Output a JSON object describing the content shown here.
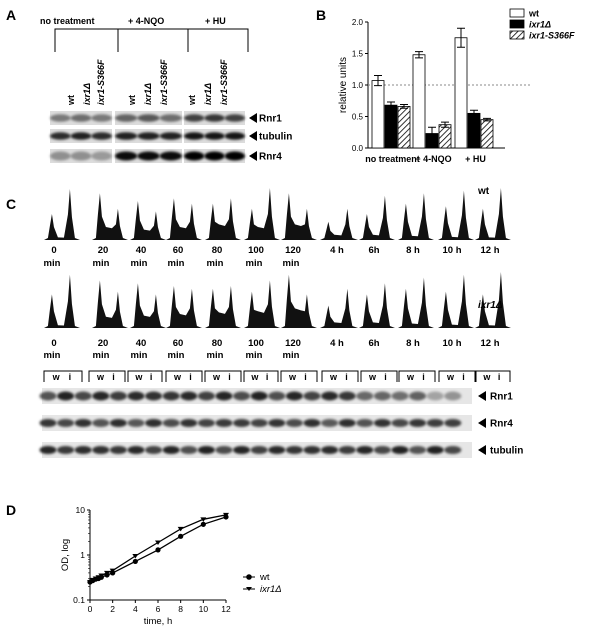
{
  "panel_letters": {
    "a": "A",
    "b": "B",
    "c": "C",
    "d": "D"
  },
  "panelA": {
    "groups": [
      "no treatment",
      "+ 4-NQO",
      "+ HU"
    ],
    "lanes": [
      "wt",
      "ixr1Δ",
      "ixr1-S366F",
      "wt",
      "ixr1Δ",
      "ixr1-S366F",
      "wt",
      "ixr1Δ",
      "ixr1-S366F"
    ],
    "bands": [
      "Rnr1",
      "tubulin",
      "Rnr4"
    ]
  },
  "panelB": {
    "legend": [
      {
        "label": "wt",
        "fill": "#ffffff"
      },
      {
        "label": "ixr1Δ",
        "fill": "#000000"
      },
      {
        "label": "ixr1-S366F",
        "fill": "hatch"
      }
    ]
  },
  "panelC": {
    "wt_label": "wt",
    "mut_label": "ixr1Δ",
    "times_top": [
      [
        "0",
        "min"
      ],
      [
        "20",
        "min"
      ],
      [
        "40",
        "min"
      ],
      [
        "60",
        "min"
      ],
      [
        "80",
        "min"
      ],
      [
        "100",
        "min"
      ],
      [
        "120",
        "min"
      ],
      [
        "4 h"
      ],
      [
        "6h"
      ],
      [
        "8 h"
      ],
      [
        "10 h"
      ],
      [
        "12 h"
      ]
    ],
    "times_blot": [
      [
        "0",
        "min"
      ],
      [
        "20",
        "min"
      ],
      [
        "40",
        "min"
      ],
      [
        "60",
        "min"
      ],
      [
        "80",
        "min"
      ],
      [
        "100",
        "min"
      ],
      [
        "120",
        "min"
      ],
      [
        "4 h"
      ],
      [
        "6h"
      ],
      [
        "8 h"
      ],
      [
        "10 h"
      ],
      [
        "12 h"
      ]
    ],
    "lane_letters": [
      "w",
      "i"
    ],
    "bands": [
      "Rnr1",
      "Rnr4",
      "tubulin"
    ]
  },
  "panelD": {
    "legend": [
      "wt",
      "ixr1Δ"
    ]
  },
  "chart_data": [
    {
      "type": "bar",
      "ylabel": "relative units",
      "categories": [
        "no treatment",
        "+ 4-NQO",
        "+ HU"
      ],
      "ylim": [
        0,
        2.0
      ],
      "yticks": [
        "0.0",
        "0.5",
        "1.0",
        "1.5",
        "2.0"
      ],
      "reference_line": 1.0,
      "series": [
        {
          "name": "wt",
          "values": [
            1.07,
            1.48,
            1.75
          ],
          "errors": [
            0.08,
            0.05,
            0.15
          ]
        },
        {
          "name": "ixr1Δ",
          "values": [
            0.68,
            0.23,
            0.55
          ],
          "errors": [
            0.05,
            0.1,
            0.05
          ]
        },
        {
          "name": "ixr1-S366F",
          "values": [
            0.66,
            0.37,
            0.45
          ],
          "errors": [
            0.03,
            0.04,
            0.02
          ]
        }
      ]
    },
    {
      "type": "line",
      "xlabel": "time, h",
      "ylabel": "OD, log",
      "xlim": [
        0,
        12
      ],
      "xticks": [
        "0",
        "2",
        "4",
        "6",
        "8",
        "10",
        "12"
      ],
      "ylim_log": [
        0.1,
        10
      ],
      "yticks": [
        "0.1",
        "1",
        "10"
      ],
      "series": [
        {
          "name": "wt",
          "x": [
            0,
            0.25,
            0.5,
            0.75,
            1,
            1.5,
            2,
            4,
            6,
            8,
            10,
            12
          ],
          "y": [
            0.25,
            0.27,
            0.29,
            0.3,
            0.32,
            0.36,
            0.4,
            0.72,
            1.3,
            2.6,
            4.8,
            7.0
          ]
        },
        {
          "name": "ixr1Δ",
          "x": [
            0,
            0.25,
            0.5,
            0.75,
            1,
            1.5,
            2,
            4,
            6,
            8,
            10,
            12
          ],
          "y": [
            0.25,
            0.28,
            0.3,
            0.32,
            0.35,
            0.4,
            0.45,
            0.95,
            1.9,
            3.8,
            6.2,
            7.8
          ]
        }
      ]
    }
  ]
}
